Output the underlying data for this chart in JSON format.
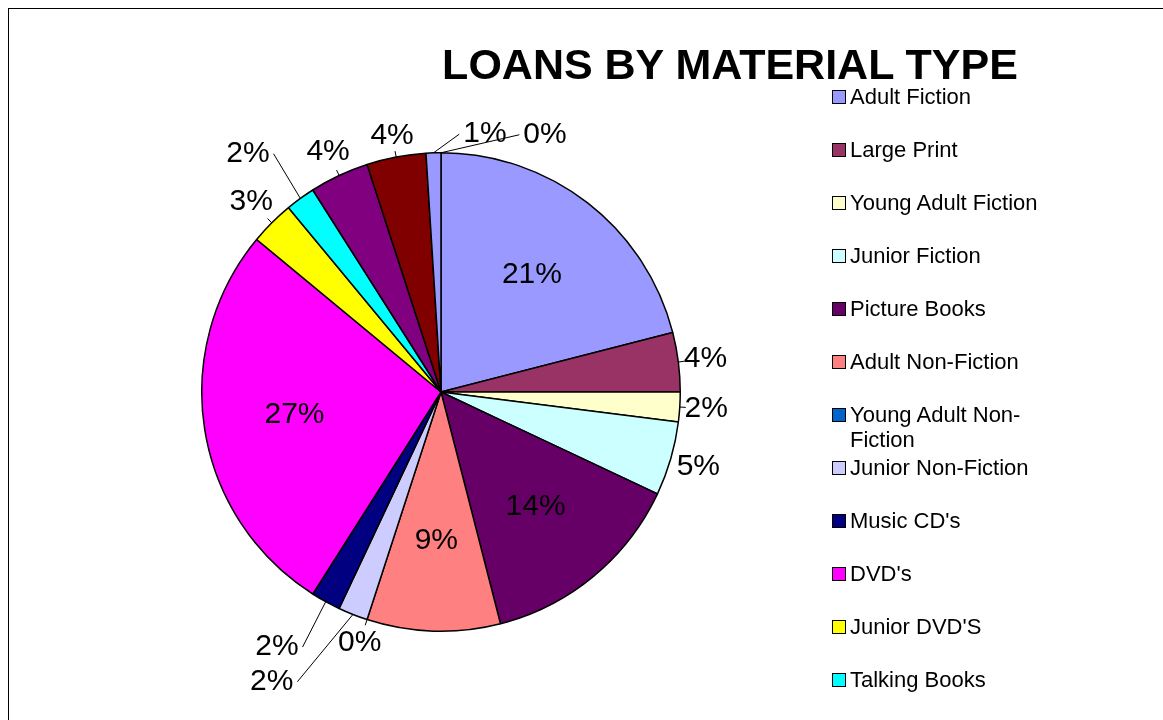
{
  "chart_data": {
    "type": "pie",
    "title": "LOANS BY MATERIAL TYPE",
    "categories": [
      "Adult Fiction",
      "Large Print",
      "Young Adult Fiction",
      "Junior Fiction",
      "Picture Books",
      "Adult Non-Fiction",
      "Young Adult Non-Fiction",
      "Junior Non-Fiction",
      "Music CD's",
      "DVD's",
      "Junior DVD'S",
      "Talking Books",
      null,
      null,
      null,
      null
    ],
    "values": [
      21,
      4,
      2,
      5,
      14,
      9,
      0,
      2,
      2,
      27,
      3,
      2,
      4,
      4,
      1,
      0
    ],
    "colors": [
      "#9999ff",
      "#993366",
      "#ffffcc",
      "#ccffff",
      "#660066",
      "#ff8080",
      "#0066cc",
      "#ccccff",
      "#000080",
      "#ff00ff",
      "#ffff00",
      "#00ffff",
      "#800080",
      "#800000",
      "#9999ff",
      "#6666cc"
    ],
    "value_labels": [
      "21%",
      "4%",
      "2%",
      "5%",
      "14%",
      "9%",
      "0%",
      "2%",
      "2%",
      "27%",
      "3%",
      "2%",
      "4%",
      "4%",
      "1%",
      "0%"
    ],
    "legend": "right"
  }
}
